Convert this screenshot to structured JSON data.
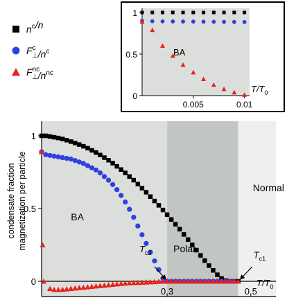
{
  "legend": {
    "items": [
      {
        "marker": "square",
        "color": "#000000",
        "main": "n",
        "sup": "c",
        "rest": "/n",
        "rest_sup": "",
        "sub": ""
      },
      {
        "marker": "circle",
        "color": "#2f3fe0",
        "main": "F",
        "sub": "⊥",
        "sup": "c",
        "rest": "/n",
        "rest_sup": "c"
      },
      {
        "marker": "triangle",
        "color": "#e8231a",
        "main": "F",
        "sub": "⊥",
        "sup": "nc",
        "rest": "/n",
        "rest_sup": "nc"
      }
    ]
  },
  "chart_data": [
    {
      "id": "main",
      "type": "scatter",
      "ylabel": [
        "condensate fraction",
        "magnetization per particle"
      ],
      "xlabel": {
        "main": "T/T",
        "sub": "0"
      },
      "ylim": [
        0,
        1.1
      ],
      "xlim": [
        0,
        0.56
      ],
      "xticks": [
        "0.3",
        "0.5"
      ],
      "xtick_values": [
        0.3,
        0.5
      ],
      "yticks": [
        "0",
        "0.5",
        "1"
      ],
      "ytick_values": [
        0,
        0.5,
        1
      ],
      "regions": [
        {
          "label": "BA",
          "from": 0,
          "to": 0.3,
          "color": "#dcdedc"
        },
        {
          "label": "Polar",
          "from": 0.3,
          "to": 0.47,
          "color": "#c2c6c2"
        },
        {
          "label": "Normal",
          "from": 0.47,
          "to": 0.56,
          "color": "#eef0ee"
        }
      ],
      "annotations": [
        {
          "main": "T",
          "sub": "c2",
          "x": 0.3
        },
        {
          "main": "T",
          "sub": "c1",
          "x": 0.47
        }
      ],
      "series": [
        {
          "marker": "square",
          "color": "#000000",
          "x": [
            0,
            0.01,
            0.02,
            0.03,
            0.04,
            0.05,
            0.06,
            0.07,
            0.08,
            0.09,
            0.1,
            0.11,
            0.12,
            0.13,
            0.14,
            0.15,
            0.16,
            0.17,
            0.18,
            0.19,
            0.2,
            0.21,
            0.22,
            0.23,
            0.24,
            0.25,
            0.26,
            0.27,
            0.28,
            0.29,
            0.3,
            0.31,
            0.32,
            0.33,
            0.34,
            0.35,
            0.36,
            0.37,
            0.38,
            0.39,
            0.4,
            0.41,
            0.42,
            0.43,
            0.44,
            0.45,
            0.46,
            0.47
          ],
          "y": [
            1.0,
            1.0,
            0.995,
            0.99,
            0.985,
            0.978,
            0.97,
            0.96,
            0.95,
            0.94,
            0.928,
            0.915,
            0.9,
            0.885,
            0.868,
            0.85,
            0.832,
            0.812,
            0.79,
            0.768,
            0.745,
            0.72,
            0.695,
            0.668,
            0.64,
            0.612,
            0.582,
            0.552,
            0.522,
            0.49,
            0.458,
            0.425,
            0.392,
            0.358,
            0.322,
            0.287,
            0.25,
            0.214,
            0.178,
            0.142,
            0.108,
            0.075,
            0.045,
            0.02,
            0.005,
            0.0,
            0.0,
            0.0
          ]
        },
        {
          "marker": "circle",
          "color": "#2f3fe0",
          "x": [
            0,
            0.01,
            0.02,
            0.03,
            0.04,
            0.05,
            0.06,
            0.07,
            0.08,
            0.09,
            0.1,
            0.11,
            0.12,
            0.13,
            0.14,
            0.15,
            0.16,
            0.17,
            0.18,
            0.19,
            0.2,
            0.21,
            0.22,
            0.23,
            0.24,
            0.25,
            0.26,
            0.27,
            0.28,
            0.29,
            0.3,
            0.31,
            0.32,
            0.33,
            0.34,
            0.35,
            0.36,
            0.37,
            0.38,
            0.39,
            0.4,
            0.41,
            0.42,
            0.43,
            0.44,
            0.45,
            0.46
          ],
          "y": [
            0.89,
            0.87,
            0.865,
            0.86,
            0.855,
            0.85,
            0.845,
            0.84,
            0.83,
            0.82,
            0.81,
            0.795,
            0.78,
            0.765,
            0.745,
            0.72,
            0.695,
            0.665,
            0.63,
            0.59,
            0.545,
            0.495,
            0.44,
            0.38,
            0.32,
            0.26,
            0.2,
            0.14,
            0.08,
            0.02,
            0.0,
            0.0,
            0.0,
            0.0,
            0.0,
            0.0,
            0.0,
            0.0,
            0.0,
            0.0,
            0.0,
            0.0,
            0.0,
            0.0,
            0.0,
            0.0,
            0.0
          ]
        },
        {
          "marker": "triangle",
          "color": "#e8231a",
          "x": [
            0,
            0.0025,
            0.005,
            0.02,
            0.03,
            0.04,
            0.05,
            0.06,
            0.07,
            0.08,
            0.09,
            0.1,
            0.11,
            0.12,
            0.13,
            0.14,
            0.15,
            0.16,
            0.17,
            0.18,
            0.19,
            0.2,
            0.21,
            0.22,
            0.23,
            0.24,
            0.25,
            0.26,
            0.27,
            0.28,
            0.29,
            0.3,
            0.31,
            0.32,
            0.33,
            0.34,
            0.35,
            0.36,
            0.37,
            0.38,
            0.39,
            0.4,
            0.41,
            0.42,
            0.43,
            0.44,
            0.45,
            0.46,
            0.47
          ],
          "y": [
            0.89,
            0.25,
            0.0,
            -0.035,
            -0.04,
            -0.04,
            -0.039,
            -0.037,
            -0.035,
            -0.033,
            -0.031,
            -0.029,
            -0.027,
            -0.025,
            -0.023,
            -0.021,
            -0.019,
            -0.017,
            -0.015,
            -0.013,
            -0.011,
            -0.009,
            -0.008,
            -0.007,
            -0.006,
            -0.005,
            -0.004,
            -0.003,
            -0.002,
            -0.001,
            0.0,
            0.0,
            0.0,
            0.0,
            0.0,
            0.0,
            0.0,
            0.0,
            0.0,
            0.0,
            0.0,
            0.0,
            0.0,
            0.0,
            0.0,
            0.0,
            0.0,
            0.0,
            0.0
          ]
        }
      ]
    },
    {
      "id": "inset",
      "type": "scatter",
      "xlabel": {
        "main": "T/T",
        "sub": "0"
      },
      "xlim": [
        0,
        0.0105
      ],
      "ylim": [
        0,
        1.05
      ],
      "xticks": [
        "0.005",
        "0.01"
      ],
      "xtick_values": [
        0.005,
        0.01
      ],
      "yticks": [
        "0",
        "0.5",
        "1"
      ],
      "ytick_values": [
        0,
        0.5,
        1
      ],
      "region_label": "BA",
      "series": [
        {
          "marker": "square",
          "color": "#000000",
          "x": [
            0,
            0.001,
            0.002,
            0.003,
            0.004,
            0.005,
            0.006,
            0.007,
            0.008,
            0.009,
            0.01
          ],
          "y": [
            1,
            1,
            1,
            1,
            1,
            1,
            1,
            1,
            1,
            1,
            1
          ]
        },
        {
          "marker": "circle",
          "color": "#2f3fe0",
          "x": [
            0,
            0.001,
            0.002,
            0.003,
            0.004,
            0.005,
            0.006,
            0.007,
            0.008,
            0.009,
            0.01
          ],
          "y": [
            0.9,
            0.895,
            0.893,
            0.892,
            0.891,
            0.89,
            0.889,
            0.888,
            0.887,
            0.886,
            0.885
          ]
        },
        {
          "marker": "triangle",
          "color": "#e8231a",
          "x": [
            0,
            0.001,
            0.002,
            0.003,
            0.004,
            0.005,
            0.006,
            0.007,
            0.008,
            0.009,
            0.01
          ],
          "y": [
            0.89,
            0.79,
            0.6,
            0.48,
            0.37,
            0.28,
            0.2,
            0.13,
            0.08,
            0.04,
            0.01
          ]
        }
      ]
    }
  ]
}
